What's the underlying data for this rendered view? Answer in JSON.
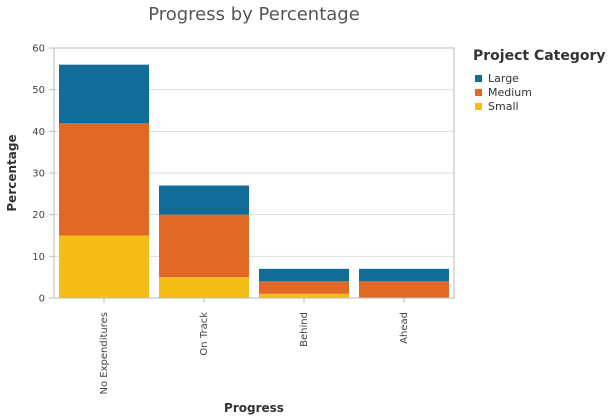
{
  "chart_data": {
    "type": "bar",
    "stacked": true,
    "title": "Progress by Percentage",
    "xlabel": "Progress",
    "ylabel": "Percentage",
    "categories": [
      "No Expenditures",
      "On Track",
      "Behind",
      "Ahead"
    ],
    "ylim": [
      0,
      60
    ],
    "yticks": [
      0,
      10,
      20,
      30,
      40,
      50,
      60
    ],
    "grid": true,
    "legend": {
      "title": "Project Category",
      "position": "top-right",
      "entries": [
        "Large",
        "Medium",
        "Small"
      ]
    },
    "series": [
      {
        "name": "Small",
        "color": "#f5bd16",
        "values": [
          15,
          5,
          1,
          0
        ]
      },
      {
        "name": "Medium",
        "color": "#e06a25",
        "values": [
          27,
          15,
          3,
          4
        ]
      },
      {
        "name": "Large",
        "color": "#126c98",
        "values": [
          14,
          7,
          3,
          3
        ]
      }
    ]
  }
}
